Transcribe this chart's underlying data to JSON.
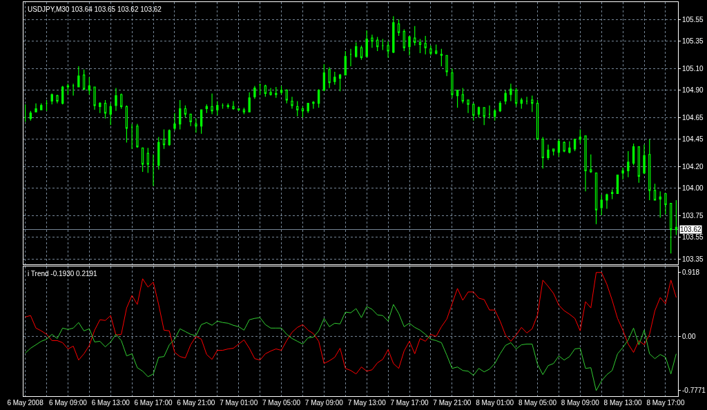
{
  "chart_data": [
    {
      "type": "candlestick",
      "title": "USDJPY,M30 103.64 103.65 103.62 103.62",
      "color": "#00ff00",
      "x": [
        "2008-05-06T05:00",
        "2008-05-06T05:30",
        "2008-05-06T06:00",
        "2008-05-06T06:30",
        "2008-05-06T07:00",
        "2008-05-06T07:30",
        "2008-05-06T08:00",
        "2008-05-06T08:30",
        "2008-05-06T09:00",
        "2008-05-06T09:30",
        "2008-05-06T10:00",
        "2008-05-06T10:30",
        "2008-05-06T11:00",
        "2008-05-06T11:30",
        "2008-05-06T12:00",
        "2008-05-06T12:30",
        "2008-05-06T13:00",
        "2008-05-06T13:30",
        "2008-05-06T14:00",
        "2008-05-06T14:30",
        "2008-05-06T15:00",
        "2008-05-06T15:30",
        "2008-05-06T16:00",
        "2008-05-06T16:30",
        "2008-05-06T17:00",
        "2008-05-06T17:30",
        "2008-05-06T18:00",
        "2008-05-06T18:30",
        "2008-05-06T19:00",
        "2008-05-06T19:30",
        "2008-05-06T20:00",
        "2008-05-06T20:30",
        "2008-05-06T21:00",
        "2008-05-06T21:30",
        "2008-05-06T22:00",
        "2008-05-06T22:30",
        "2008-05-06T23:00",
        "2008-05-06T23:30",
        "2008-05-07T00:00",
        "2008-05-07T00:30",
        "2008-05-07T01:00",
        "2008-05-07T01:30",
        "2008-05-07T02:00",
        "2008-05-07T02:30",
        "2008-05-07T03:00",
        "2008-05-07T03:30",
        "2008-05-07T04:00",
        "2008-05-07T04:30",
        "2008-05-07T05:00",
        "2008-05-07T05:30",
        "2008-05-07T06:00",
        "2008-05-07T06:30",
        "2008-05-07T07:00",
        "2008-05-07T07:30",
        "2008-05-07T08:00",
        "2008-05-07T08:30",
        "2008-05-07T09:00",
        "2008-05-07T09:30",
        "2008-05-07T10:00",
        "2008-05-07T10:30",
        "2008-05-07T11:00",
        "2008-05-07T11:30",
        "2008-05-07T12:00",
        "2008-05-07T12:30",
        "2008-05-07T13:00",
        "2008-05-07T13:30",
        "2008-05-07T14:00",
        "2008-05-07T14:30",
        "2008-05-07T15:00",
        "2008-05-07T15:30",
        "2008-05-07T16:00",
        "2008-05-07T16:30",
        "2008-05-07T17:00",
        "2008-05-07T17:30",
        "2008-05-07T18:00",
        "2008-05-07T18:30",
        "2008-05-07T19:00",
        "2008-05-07T19:30",
        "2008-05-07T20:00",
        "2008-05-07T20:30",
        "2008-05-07T21:00",
        "2008-05-07T21:30",
        "2008-05-07T22:00",
        "2008-05-07T22:30",
        "2008-05-07T23:00",
        "2008-05-07T23:30",
        "2008-05-08T00:00",
        "2008-05-08T00:30",
        "2008-05-08T01:00",
        "2008-05-08T01:30",
        "2008-05-08T02:00",
        "2008-05-08T02:30",
        "2008-05-08T03:00",
        "2008-05-08T03:30",
        "2008-05-08T04:00",
        "2008-05-08T04:30",
        "2008-05-08T05:00",
        "2008-05-08T05:30",
        "2008-05-08T06:00",
        "2008-05-08T06:30",
        "2008-05-08T07:00",
        "2008-05-08T07:30",
        "2008-05-08T08:00",
        "2008-05-08T08:30",
        "2008-05-08T09:00",
        "2008-05-08T09:30",
        "2008-05-08T10:00",
        "2008-05-08T10:30",
        "2008-05-08T11:00",
        "2008-05-08T11:30",
        "2008-05-08T12:00",
        "2008-05-08T12:30",
        "2008-05-08T13:00",
        "2008-05-08T13:30",
        "2008-05-08T14:00",
        "2008-05-08T14:30",
        "2008-05-08T15:00",
        "2008-05-08T15:30",
        "2008-05-08T16:00",
        "2008-05-08T16:30",
        "2008-05-08T17:00",
        "2008-05-08T17:30",
        "2008-05-08T18:00"
      ],
      "ohlc": [
        [
          104.65,
          104.77,
          104.61,
          104.65
        ],
        [
          104.64,
          104.71,
          104.62,
          104.69
        ],
        [
          104.7,
          104.78,
          104.7,
          104.73
        ],
        [
          104.72,
          104.78,
          104.72,
          104.76
        ],
        [
          104.78,
          104.81,
          104.71,
          104.78
        ],
        [
          104.8,
          104.87,
          104.77,
          104.86
        ],
        [
          104.85,
          104.86,
          104.78,
          104.8
        ],
        [
          104.78,
          104.94,
          104.77,
          104.93
        ],
        [
          104.93,
          104.96,
          104.86,
          104.94
        ],
        [
          104.94,
          104.96,
          104.85,
          104.94
        ],
        [
          104.93,
          105.12,
          104.93,
          105.03
        ],
        [
          105.04,
          105.09,
          104.9,
          104.91
        ],
        [
          104.9,
          105.02,
          104.86,
          104.94
        ],
        [
          104.93,
          104.93,
          104.72,
          104.76
        ],
        [
          104.75,
          104.79,
          104.69,
          104.78
        ],
        [
          104.78,
          104.81,
          104.64,
          104.69
        ],
        [
          104.68,
          104.78,
          104.58,
          104.75
        ],
        [
          104.76,
          104.92,
          104.71,
          104.85
        ],
        [
          104.86,
          104.87,
          104.73,
          104.75
        ],
        [
          104.75,
          104.76,
          104.42,
          104.55
        ],
        [
          104.56,
          104.59,
          104.36,
          104.56
        ],
        [
          104.57,
          104.59,
          104.37,
          104.38
        ],
        [
          104.37,
          104.37,
          104.15,
          104.22
        ],
        [
          104.32,
          104.37,
          104.14,
          104.22
        ],
        [
          104.22,
          104.31,
          104.02,
          104.22
        ],
        [
          104.21,
          104.47,
          104.17,
          104.42
        ],
        [
          104.45,
          104.54,
          104.36,
          104.4
        ],
        [
          104.4,
          104.54,
          104.39,
          104.53
        ],
        [
          104.55,
          104.69,
          104.53,
          104.59
        ],
        [
          104.59,
          104.81,
          104.54,
          104.73
        ],
        [
          104.73,
          104.76,
          104.65,
          104.68
        ],
        [
          104.68,
          104.68,
          104.57,
          104.61
        ],
        [
          104.59,
          104.64,
          104.51,
          104.57
        ],
        [
          104.57,
          104.72,
          104.5,
          104.72
        ],
        [
          104.73,
          104.77,
          104.69,
          104.75
        ],
        [
          104.75,
          104.87,
          104.68,
          104.71
        ],
        [
          104.72,
          104.8,
          104.67,
          104.76
        ],
        [
          104.76,
          104.78,
          104.73,
          104.76
        ],
        [
          104.76,
          104.78,
          104.73,
          104.75
        ],
        [
          104.75,
          104.8,
          104.72,
          104.73
        ],
        [
          104.73,
          104.73,
          104.71,
          104.72
        ],
        [
          104.72,
          104.74,
          104.68,
          104.7
        ],
        [
          104.7,
          104.88,
          104.7,
          104.83
        ],
        [
          104.84,
          104.94,
          104.82,
          104.92
        ],
        [
          104.95,
          104.96,
          104.86,
          104.95
        ],
        [
          104.94,
          104.95,
          104.84,
          104.87
        ],
        [
          104.88,
          104.92,
          104.85,
          104.86
        ],
        [
          104.86,
          104.93,
          104.83,
          104.87
        ],
        [
          104.88,
          104.94,
          104.86,
          104.9
        ],
        [
          104.9,
          104.91,
          104.78,
          104.81
        ],
        [
          104.8,
          104.84,
          104.73,
          104.76
        ],
        [
          104.75,
          104.8,
          104.66,
          104.72
        ],
        [
          104.73,
          104.75,
          104.65,
          104.71
        ],
        [
          104.71,
          104.78,
          104.69,
          104.78
        ],
        [
          104.78,
          104.8,
          104.73,
          104.79
        ],
        [
          104.78,
          104.91,
          104.74,
          104.9
        ],
        [
          104.9,
          105.14,
          104.89,
          105.06
        ],
        [
          105.09,
          105.11,
          104.92,
          104.97
        ],
        [
          104.98,
          105.07,
          104.95,
          105.02
        ],
        [
          105.01,
          105.05,
          104.89,
          105.04
        ],
        [
          105.04,
          105.26,
          105.04,
          105.21
        ],
        [
          105.23,
          105.28,
          105.12,
          105.23
        ],
        [
          105.21,
          105.34,
          105.2,
          105.3
        ],
        [
          105.29,
          105.31,
          105.18,
          105.2
        ],
        [
          105.21,
          105.45,
          105.21,
          105.37
        ],
        [
          105.38,
          105.41,
          105.29,
          105.35
        ],
        [
          105.36,
          105.39,
          105.26,
          105.3
        ],
        [
          105.31,
          105.37,
          105.27,
          105.31
        ],
        [
          105.31,
          105.35,
          105.2,
          105.26
        ],
        [
          105.25,
          105.58,
          105.24,
          105.52
        ],
        [
          105.51,
          105.55,
          105.4,
          105.43
        ],
        [
          105.44,
          105.46,
          105.26,
          105.29
        ],
        [
          105.3,
          105.4,
          105.22,
          105.39
        ],
        [
          105.38,
          105.49,
          105.31,
          105.34
        ],
        [
          105.34,
          105.37,
          105.24,
          105.32
        ],
        [
          105.33,
          105.4,
          105.23,
          105.29
        ],
        [
          105.28,
          105.31,
          105.22,
          105.24
        ],
        [
          105.26,
          105.32,
          105.23,
          105.24
        ],
        [
          105.23,
          105.28,
          105.12,
          105.22
        ],
        [
          105.22,
          105.22,
          105.03,
          105.07
        ],
        [
          105.06,
          105.1,
          104.83,
          104.86
        ],
        [
          104.85,
          104.9,
          104.74,
          104.9
        ],
        [
          104.86,
          104.92,
          104.78,
          104.8
        ],
        [
          104.81,
          104.81,
          104.69,
          104.77
        ],
        [
          104.77,
          104.78,
          104.62,
          104.67
        ],
        [
          104.68,
          104.75,
          104.65,
          104.74
        ],
        [
          104.74,
          104.74,
          104.58,
          104.66
        ],
        [
          104.68,
          104.76,
          104.64,
          104.68
        ],
        [
          104.66,
          104.73,
          104.62,
          104.71
        ],
        [
          104.71,
          104.8,
          104.7,
          104.78
        ],
        [
          104.8,
          104.9,
          104.77,
          104.87
        ],
        [
          104.86,
          104.96,
          104.8,
          104.91
        ],
        [
          104.9,
          104.92,
          104.75,
          104.78
        ],
        [
          104.78,
          104.83,
          104.73,
          104.81
        ],
        [
          104.8,
          104.84,
          104.77,
          104.8
        ],
        [
          104.81,
          104.85,
          104.7,
          104.78
        ],
        [
          104.78,
          104.81,
          104.45,
          104.45
        ],
        [
          104.45,
          104.47,
          104.18,
          104.28
        ],
        [
          104.28,
          104.4,
          104.26,
          104.35
        ],
        [
          104.36,
          104.36,
          104.3,
          104.34
        ],
        [
          104.33,
          104.45,
          104.29,
          104.43
        ],
        [
          104.42,
          104.43,
          104.33,
          104.34
        ],
        [
          104.33,
          104.43,
          104.32,
          104.37
        ],
        [
          104.36,
          104.45,
          104.34,
          104.45
        ],
        [
          104.45,
          104.54,
          104.41,
          104.47
        ],
        [
          104.48,
          104.48,
          103.97,
          104.16
        ],
        [
          104.17,
          104.31,
          104.14,
          104.15
        ],
        [
          104.14,
          104.14,
          103.67,
          103.8
        ],
        [
          103.82,
          103.94,
          103.75,
          103.89
        ],
        [
          103.89,
          103.95,
          103.81,
          103.94
        ],
        [
          103.95,
          103.99,
          103.9,
          103.96
        ],
        [
          103.95,
          104.12,
          103.95,
          104.12
        ],
        [
          104.14,
          104.19,
          104.08,
          104.16
        ],
        [
          104.16,
          104.34,
          104.1,
          104.24
        ],
        [
          104.23,
          104.41,
          104.21,
          104.38
        ],
        [
          104.38,
          104.38,
          104.05,
          104.11
        ],
        [
          104.14,
          104.4,
          104.13,
          104.3
        ],
        [
          104.31,
          104.45,
          103.89,
          103.98
        ],
        [
          103.98,
          104.04,
          103.89,
          103.89
        ],
        [
          103.9,
          103.97,
          103.73,
          103.92
        ],
        [
          103.95,
          103.95,
          103.76,
          103.85
        ],
        [
          103.86,
          103.86,
          103.4,
          103.62
        ],
        [
          103.62,
          103.89,
          103.57,
          103.64
        ]
      ],
      "xlim": [
        "2008-05-06T04:50",
        "2008-05-08T18:10"
      ],
      "ylim": [
        103.3,
        105.71
      ],
      "yticks": [
        105.55,
        105.35,
        {
          "value": 105.1,
          "label": "105.10"
        },
        {
          "value": 104.9,
          "label": "104.90"
        },
        104.65,
        104.45,
        {
          "value": 104.2,
          "label": "104.20"
        },
        {
          "value": 104,
          "label": "104.00"
        },
        103.75,
        103.55,
        103.35
      ],
      "grid": true,
      "tick_labels": "y",
      "ref_lines": [
        {
          "axis": "y",
          "value": 103.62,
          "label": "103.62",
          "color": "#778899"
        }
      ]
    },
    {
      "type": "line",
      "title": "i Trend -0.1930 0.2191",
      "x": [
        "2008-05-06T05:00",
        "2008-05-06T05:30",
        "2008-05-06T06:00",
        "2008-05-06T06:30",
        "2008-05-06T07:00",
        "2008-05-06T07:30",
        "2008-05-06T08:00",
        "2008-05-06T08:30",
        "2008-05-06T09:00",
        "2008-05-06T09:30",
        "2008-05-06T10:00",
        "2008-05-06T10:30",
        "2008-05-06T11:00",
        "2008-05-06T11:30",
        "2008-05-06T12:00",
        "2008-05-06T12:30",
        "2008-05-06T13:00",
        "2008-05-06T13:30",
        "2008-05-06T14:00",
        "2008-05-06T14:30",
        "2008-05-06T15:00",
        "2008-05-06T15:30",
        "2008-05-06T16:00",
        "2008-05-06T16:30",
        "2008-05-06T17:00",
        "2008-05-06T17:30",
        "2008-05-06T18:00",
        "2008-05-06T18:30",
        "2008-05-06T19:00",
        "2008-05-06T19:30",
        "2008-05-06T20:00",
        "2008-05-06T20:30",
        "2008-05-06T21:00",
        "2008-05-06T21:30",
        "2008-05-06T22:00",
        "2008-05-06T22:30",
        "2008-05-06T23:00",
        "2008-05-06T23:30",
        "2008-05-07T00:00",
        "2008-05-07T00:30",
        "2008-05-07T01:00",
        "2008-05-07T01:30",
        "2008-05-07T02:00",
        "2008-05-07T02:30",
        "2008-05-07T03:00",
        "2008-05-07T03:30",
        "2008-05-07T04:00",
        "2008-05-07T04:30",
        "2008-05-07T05:00",
        "2008-05-07T05:30",
        "2008-05-07T06:00",
        "2008-05-07T06:30",
        "2008-05-07T07:00",
        "2008-05-07T07:30",
        "2008-05-07T08:00",
        "2008-05-07T08:30",
        "2008-05-07T09:00",
        "2008-05-07T09:30",
        "2008-05-07T10:00",
        "2008-05-07T10:30",
        "2008-05-07T11:00",
        "2008-05-07T11:30",
        "2008-05-07T12:00",
        "2008-05-07T12:30",
        "2008-05-07T13:00",
        "2008-05-07T13:30",
        "2008-05-07T14:00",
        "2008-05-07T14:30",
        "2008-05-07T15:00",
        "2008-05-07T15:30",
        "2008-05-07T16:00",
        "2008-05-07T16:30",
        "2008-05-07T17:00",
        "2008-05-07T17:30",
        "2008-05-07T18:00",
        "2008-05-07T18:30",
        "2008-05-07T19:00",
        "2008-05-07T19:30",
        "2008-05-07T20:00",
        "2008-05-07T20:30",
        "2008-05-07T21:00",
        "2008-05-07T21:30",
        "2008-05-07T22:00",
        "2008-05-07T22:30",
        "2008-05-07T23:00",
        "2008-05-07T23:30",
        "2008-05-08T00:00",
        "2008-05-08T00:30",
        "2008-05-08T01:00",
        "2008-05-08T01:30",
        "2008-05-08T02:00",
        "2008-05-08T02:30",
        "2008-05-08T03:00",
        "2008-05-08T03:30",
        "2008-05-08T04:00",
        "2008-05-08T04:30",
        "2008-05-08T05:00",
        "2008-05-08T05:30",
        "2008-05-08T06:00",
        "2008-05-08T06:30",
        "2008-05-08T07:00",
        "2008-05-08T07:30",
        "2008-05-08T08:00",
        "2008-05-08T08:30",
        "2008-05-08T09:00",
        "2008-05-08T09:30",
        "2008-05-08T10:00",
        "2008-05-08T10:30",
        "2008-05-08T11:00",
        "2008-05-08T11:30",
        "2008-05-08T12:00",
        "2008-05-08T12:30",
        "2008-05-08T13:00",
        "2008-05-08T13:30",
        "2008-05-08T14:00",
        "2008-05-08T14:30",
        "2008-05-08T15:00",
        "2008-05-08T15:30",
        "2008-05-08T16:00",
        "2008-05-08T16:30",
        "2008-05-08T17:00",
        "2008-05-08T17:30",
        "2008-05-08T18:00"
      ],
      "series": [
        {
          "color": "#ff0000",
          "values": [
            0.28,
            0.3,
            0.12,
            0.08,
            0.03,
            -0.06,
            -0.06,
            -0.09,
            -0.18,
            -0.14,
            -0.34,
            -0.25,
            -0.13,
            0.09,
            0.24,
            0.23,
            0.3,
            0.02,
            0.03,
            0.41,
            0.59,
            0.46,
            0.83,
            0.71,
            0.78,
            0.46,
            0.09,
            0.08,
            -0.23,
            -0.29,
            -0.31,
            -0.12,
            0.0,
            -0.04,
            -0.26,
            -0.33,
            -0.2,
            -0.2,
            -0.18,
            -0.17,
            -0.11,
            -0.05,
            -0.17,
            -0.32,
            -0.34,
            -0.25,
            -0.21,
            -0.18,
            -0.2,
            -0.06,
            0.06,
            0.13,
            0.17,
            0.09,
            0.04,
            -0.07,
            -0.39,
            -0.35,
            -0.3,
            -0.17,
            -0.46,
            -0.49,
            -0.54,
            -0.44,
            -0.5,
            -0.48,
            -0.38,
            -0.33,
            -0.19,
            -0.39,
            -0.46,
            -0.21,
            -0.07,
            -0.25,
            -0.03,
            -0.07,
            0.03,
            0.0,
            0.14,
            0.25,
            0.47,
            0.69,
            0.52,
            0.64,
            0.64,
            0.55,
            0.53,
            0.38,
            0.38,
            0.22,
            0.02,
            -0.07,
            0.02,
            0.13,
            0.05,
            0.11,
            0.31,
            0.81,
            0.72,
            0.62,
            0.45,
            0.37,
            0.32,
            0.26,
            0.08,
            0.5,
            0.41,
            0.92,
            0.92,
            0.75,
            0.52,
            0.26,
            0.09,
            -0.11,
            -0.23,
            -0.06,
            -0.12,
            0.03,
            0.37,
            0.56,
            0.47,
            0.81,
            0.56
          ]
        },
        {
          "color": "#32cd32",
          "values": [
            -0.24,
            -0.17,
            -0.12,
            -0.07,
            -0.04,
            0.03,
            -0.03,
            0.12,
            0.1,
            0.12,
            0.2,
            0.08,
            0.11,
            -0.08,
            -0.07,
            -0.15,
            -0.08,
            0.03,
            -0.06,
            -0.28,
            -0.25,
            -0.45,
            -0.5,
            -0.58,
            -0.54,
            -0.3,
            -0.29,
            -0.12,
            -0.04,
            0.11,
            0.07,
            0.03,
            0.01,
            0.17,
            0.2,
            0.16,
            0.22,
            0.2,
            0.19,
            0.16,
            0.14,
            0.09,
            0.24,
            0.26,
            0.27,
            0.17,
            0.12,
            0.12,
            0.12,
            0.03,
            -0.03,
            -0.07,
            -0.11,
            -0.02,
            -0.01,
            0.08,
            0.26,
            0.14,
            0.19,
            0.18,
            0.35,
            0.34,
            0.4,
            0.27,
            0.43,
            0.39,
            0.31,
            0.3,
            0.22,
            0.46,
            0.33,
            0.14,
            0.19,
            0.13,
            0.09,
            0.03,
            -0.04,
            -0.06,
            -0.09,
            -0.27,
            -0.46,
            -0.44,
            -0.49,
            -0.5,
            -0.56,
            -0.46,
            -0.51,
            -0.47,
            -0.39,
            -0.25,
            -0.13,
            -0.09,
            -0.18,
            -0.12,
            -0.11,
            -0.11,
            -0.4,
            -0.55,
            -0.42,
            -0.39,
            -0.28,
            -0.34,
            -0.29,
            -0.18,
            -0.17,
            -0.46,
            -0.45,
            -0.78,
            -0.64,
            -0.55,
            -0.49,
            -0.25,
            -0.16,
            -0.05,
            0.12,
            -0.12,
            0.09,
            -0.25,
            -0.32,
            -0.26,
            -0.3,
            -0.54,
            -0.25
          ]
        }
      ],
      "xlim": [
        "2008-05-06T04:50",
        "2008-05-08T18:10"
      ],
      "xticks": [
        {
          "value": "2008-05-06T05:00",
          "label": "6 May 2008"
        },
        {
          "value": "2008-05-06T07:00",
          "label": null
        },
        {
          "value": "2008-05-06T09:00",
          "label": "6 May 09:00"
        },
        {
          "value": "2008-05-06T11:00",
          "label": null
        },
        {
          "value": "2008-05-06T13:00",
          "label": "6 May 13:00"
        },
        {
          "value": "2008-05-06T15:00",
          "label": null
        },
        {
          "value": "2008-05-06T17:00",
          "label": "6 May 17:00"
        },
        {
          "value": "2008-05-06T19:00",
          "label": null
        },
        {
          "value": "2008-05-06T21:00",
          "label": "6 May 21:00"
        },
        {
          "value": "2008-05-06T23:00",
          "label": null
        },
        {
          "value": "2008-05-07T01:00",
          "label": "7 May 01:00"
        },
        {
          "value": "2008-05-07T03:00",
          "label": null
        },
        {
          "value": "2008-05-07T05:00",
          "label": "7 May 05:00"
        },
        {
          "value": "2008-05-07T07:00",
          "label": null
        },
        {
          "value": "2008-05-07T09:00",
          "label": "7 May 09:00"
        },
        {
          "value": "2008-05-07T11:00",
          "label": null
        },
        {
          "value": "2008-05-07T13:00",
          "label": "7 May 13:00"
        },
        {
          "value": "2008-05-07T15:00",
          "label": null
        },
        {
          "value": "2008-05-07T17:00",
          "label": "7 May 17:00"
        },
        {
          "value": "2008-05-07T19:00",
          "label": null
        },
        {
          "value": "2008-05-07T21:00",
          "label": "7 May 21:00"
        },
        {
          "value": "2008-05-07T23:00",
          "label": null
        },
        {
          "value": "2008-05-08T01:00",
          "label": "8 May 01:00"
        },
        {
          "value": "2008-05-08T03:00",
          "label": null
        },
        {
          "value": "2008-05-08T05:00",
          "label": "8 May 05:00"
        },
        {
          "value": "2008-05-08T07:00",
          "label": null
        },
        {
          "value": "2008-05-08T09:00",
          "label": "8 May 09:00"
        },
        {
          "value": "2008-05-08T11:00",
          "label": null
        },
        {
          "value": "2008-05-08T13:00",
          "label": "8 May 13:00"
        },
        {
          "value": "2008-05-08T15:00",
          "label": null
        },
        {
          "value": "2008-05-08T17:00",
          "label": "8 May 17:00"
        }
      ],
      "ylim": [
        -0.86,
        1.01
      ],
      "yticks": [
        0.918,
        {
          "value": 0,
          "label": "0.00"
        },
        -0.7771
      ],
      "grid": "x",
      "ref_lines": [
        {
          "axis": "y",
          "value": 0,
          "color": "#778899",
          "line_style": "dashed"
        }
      ]
    }
  ]
}
